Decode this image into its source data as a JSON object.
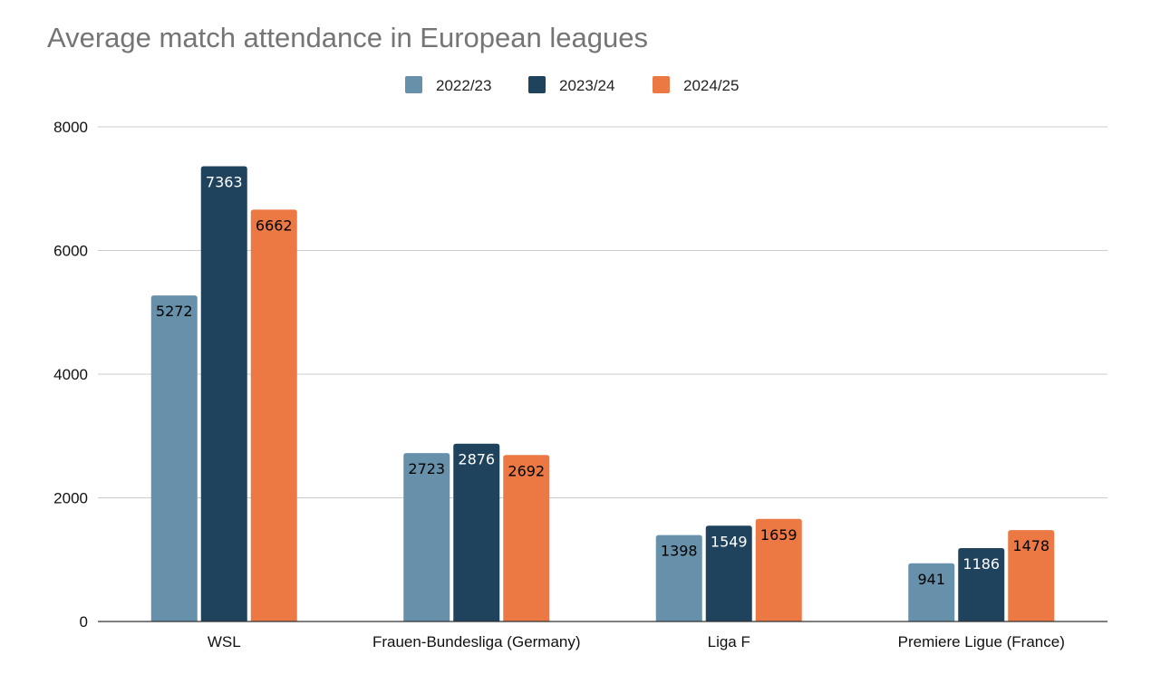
{
  "chart_data": {
    "type": "bar",
    "title": "Average match attendance in European leagues",
    "xlabel": "",
    "ylabel": "",
    "categories": [
      "WSL",
      "Frauen-Bundesliga (Germany)",
      "Liga F",
      "Premiere Ligue (France)"
    ],
    "series": [
      {
        "name": "2022/23",
        "color": "#6791ab",
        "label_color": "#000000",
        "values": [
          5272,
          2723,
          1398,
          941
        ]
      },
      {
        "name": "2023/24",
        "color": "#1f435c",
        "label_color": "#ffffff",
        "values": [
          7363,
          2876,
          1549,
          1186
        ]
      },
      {
        "name": "2024/25",
        "color": "#ec7843",
        "label_color": "#000000",
        "values": [
          6662,
          2692,
          1659,
          1478
        ]
      }
    ],
    "ylim": [
      0,
      8000
    ],
    "yticks": [
      0,
      2000,
      4000,
      6000,
      8000
    ],
    "grid": true,
    "legend_position": "top-center",
    "data_labels": true
  }
}
